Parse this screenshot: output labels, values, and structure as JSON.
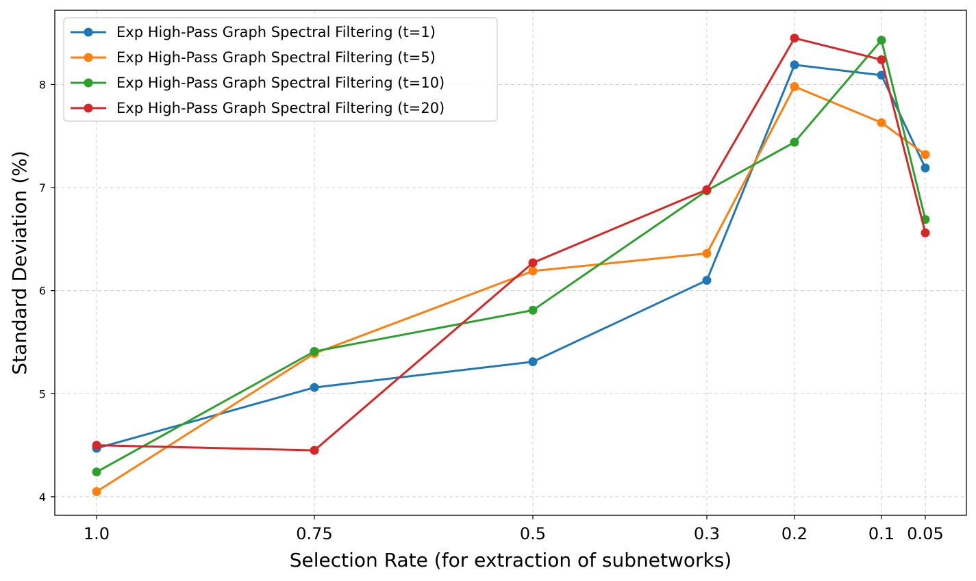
{
  "chart_data": {
    "type": "line",
    "title": "",
    "xlabel": "Selection Rate (for extraction of subnetworks)",
    "ylabel": "Standard Deviation (%)",
    "categories": [
      "1.0",
      "0.75",
      "0.5",
      "0.3",
      "0.2",
      "0.1",
      "0.05"
    ],
    "x": [
      1.0,
      0.75,
      0.5,
      0.3,
      0.2,
      0.1,
      0.05
    ],
    "ylim": [
      3.82,
      8.72
    ],
    "yticks": [
      "4",
      "5",
      "6",
      "7",
      "8"
    ],
    "grid": true,
    "legend_position": "top-left",
    "series": [
      {
        "name": "Exp High-Pass Graph Spectral Filtering (t=1)",
        "color": "#1f77b4",
        "values": [
          4.47,
          5.06,
          5.31,
          6.1,
          8.19,
          8.09,
          7.19
        ]
      },
      {
        "name": "Exp High-Pass Graph Spectral Filtering (t=5)",
        "color": "#ff7f0e",
        "values": [
          4.05,
          5.39,
          6.19,
          6.36,
          7.98,
          7.63,
          7.32
        ]
      },
      {
        "name": "Exp High-Pass Graph Spectral Filtering (t=10)",
        "color": "#2ca02c",
        "values": [
          4.24,
          5.41,
          5.81,
          6.97,
          7.44,
          8.43,
          6.69
        ]
      },
      {
        "name": "Exp High-Pass Graph Spectral Filtering (t=20)",
        "color": "#d62728",
        "values": [
          4.5,
          4.45,
          6.27,
          6.98,
          8.45,
          8.24,
          6.56
        ]
      }
    ]
  }
}
